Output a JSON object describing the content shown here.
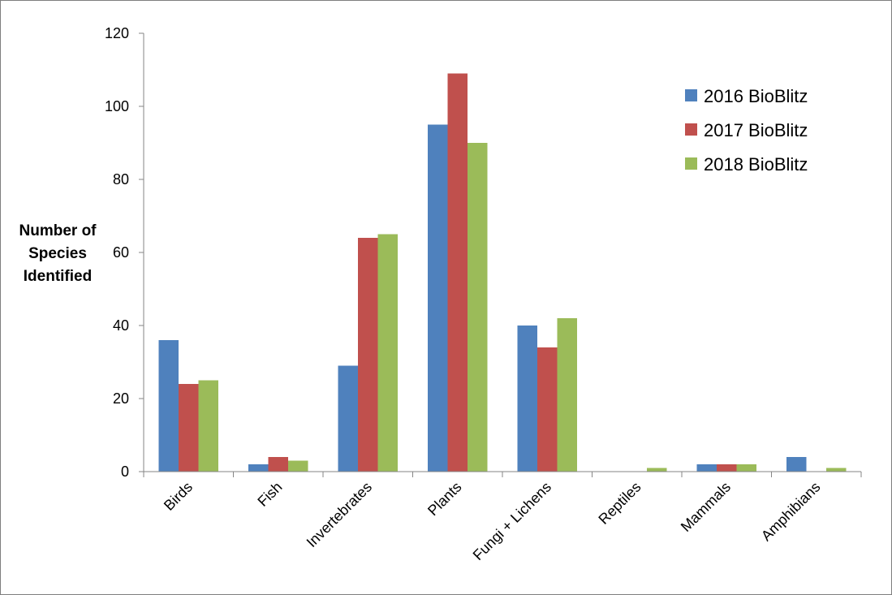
{
  "chart_data": {
    "type": "bar",
    "title": "",
    "xlabel": "",
    "ylabel": "Number of Species Identified",
    "ylim": [
      0,
      120
    ],
    "yticks": [
      "0",
      "20",
      "40",
      "60",
      "80",
      "100",
      "120"
    ],
    "grid": false,
    "legend_position": "top-right",
    "categories": [
      "Birds",
      "Fish",
      "Invertebrates",
      "Plants",
      "Fungi + Lichens",
      "Reptiles",
      "Mammals",
      "Amphibians"
    ],
    "series": [
      {
        "name": "2016 BioBlitz",
        "color": "#4f81bd",
        "values": [
          36,
          2,
          29,
          95,
          40,
          0,
          2,
          4
        ]
      },
      {
        "name": "2017 BioBlitz",
        "color": "#c0504d",
        "values": [
          24,
          4,
          64,
          109,
          34,
          0,
          2,
          0
        ]
      },
      {
        "name": "2018 BioBlitz",
        "color": "#9bbb59",
        "values": [
          25,
          3,
          65,
          90,
          42,
          1,
          2,
          1
        ]
      }
    ]
  }
}
